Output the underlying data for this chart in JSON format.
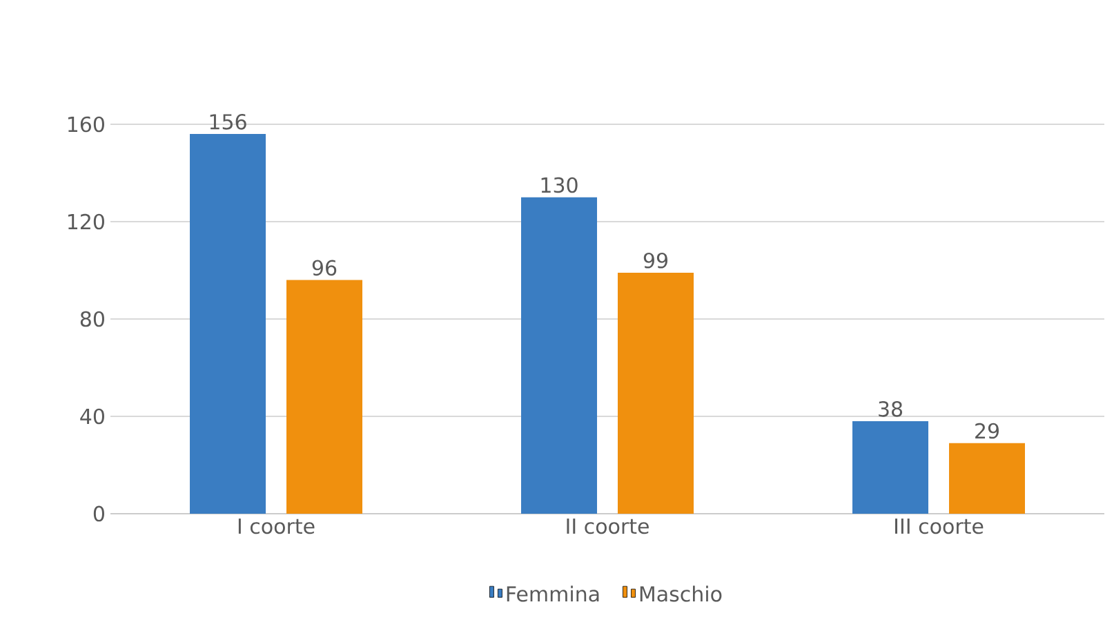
{
  "chart_data": {
    "type": "bar",
    "categories": [
      "I coorte",
      "II coorte",
      "III coorte"
    ],
    "series": [
      {
        "name": "Femmina",
        "color": "#3a7dc2",
        "values": [
          156,
          130,
          38
        ]
      },
      {
        "name": "Maschio",
        "color": "#f0900e",
        "values": [
          96,
          99,
          29
        ]
      }
    ],
    "ylim": [
      0,
      160
    ],
    "yticks": [
      0,
      40,
      80,
      120,
      160
    ],
    "grid": "y",
    "legend": "bottom",
    "data_labels": true
  }
}
